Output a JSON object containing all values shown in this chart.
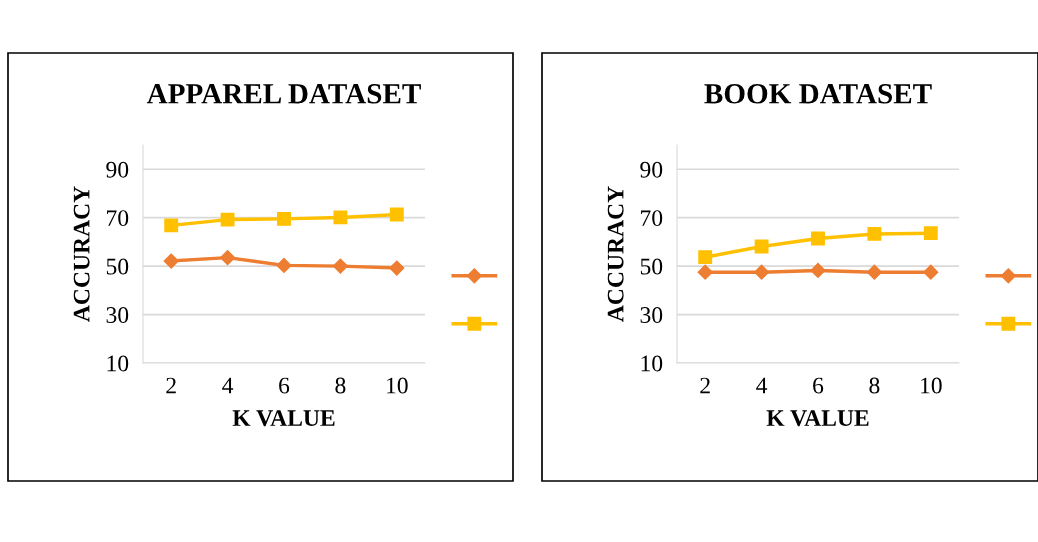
{
  "chart_data": [
    {
      "type": "line",
      "title": "APPAREL DATASET",
      "xlabel": "K VALUE",
      "ylabel": "ACCURACY",
      "categories": [
        "2",
        "4",
        "6",
        "8",
        "10"
      ],
      "ylim": [
        10,
        100
      ],
      "yticks": [
        10,
        30,
        50,
        70,
        90
      ],
      "grid": "y",
      "series": [
        {
          "color": "#ed7d31",
          "marker": "diamond",
          "values": [
            52.1,
            53.5,
            50.3,
            50.0,
            49.2
          ]
        },
        {
          "color": "#ffc000",
          "marker": "square",
          "values": [
            66.8,
            69.2,
            69.5,
            70.1,
            71.3
          ]
        }
      ]
    },
    {
      "type": "line",
      "title": "BOOK DATASET",
      "xlabel": "K VALUE",
      "ylabel": "ACCURACY",
      "categories": [
        "2",
        "4",
        "6",
        "8",
        "10"
      ],
      "ylim": [
        10,
        100
      ],
      "yticks": [
        10,
        30,
        50,
        70,
        90
      ],
      "grid": "y",
      "series": [
        {
          "color": "#ed7d31",
          "marker": "diamond",
          "values": [
            47.5,
            47.5,
            48.2,
            47.5,
            47.5
          ]
        },
        {
          "color": "#ffc000",
          "marker": "square",
          "values": [
            53.7,
            58.1,
            61.4,
            63.3,
            63.6
          ]
        }
      ]
    }
  ]
}
